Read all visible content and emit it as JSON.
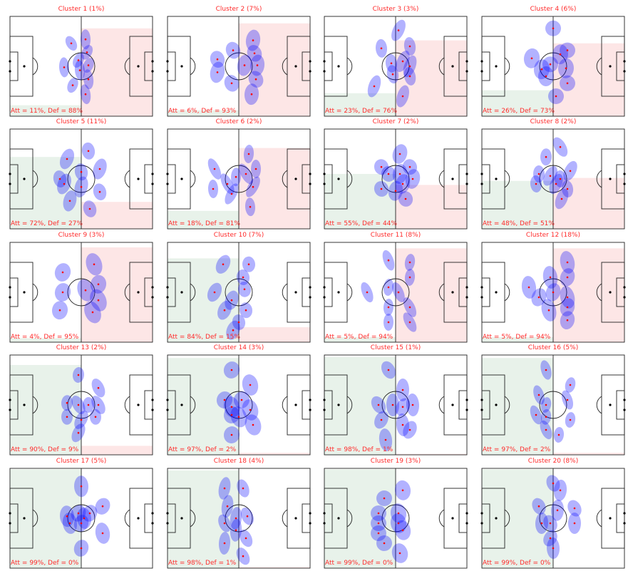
{
  "chart_data": {
    "type": "scatter",
    "title": "",
    "description_units": "player positions in pitch percent (x: own goal to opponent goal, y: top to bottom)",
    "colors": {
      "ellipse": "#0000ff",
      "point": "#ff0000",
      "att_shade": "#e8f2ea",
      "def_shade": "#fde6e6",
      "text": "#ff2a2a"
    },
    "panels": [
      {
        "title": "Cluster 1 (1%)",
        "stats": "Att = 11%, Def = 88%",
        "att": 11,
        "def": 88,
        "points": [
          [
            43,
            27
          ],
          [
            53,
            23
          ],
          [
            54,
            36
          ],
          [
            38,
            51
          ],
          [
            48,
            44
          ],
          [
            49,
            54
          ],
          [
            55,
            49
          ],
          [
            55,
            63
          ],
          [
            44,
            69
          ],
          [
            53,
            78
          ]
        ]
      },
      {
        "title": "Cluster 2 (7%)",
        "stats": "Att = 6%, Def = 93%",
        "att": 6,
        "def": 93,
        "points": [
          [
            35,
            43
          ],
          [
            35,
            56
          ],
          [
            46,
            34
          ],
          [
            54,
            49
          ],
          [
            45,
            67
          ],
          [
            60,
            24
          ],
          [
            61,
            37
          ],
          [
            63,
            49
          ],
          [
            62,
            63
          ],
          [
            59,
            78
          ]
        ]
      },
      {
        "title": "Cluster 3 (3%)",
        "stats": "Att = 23%, Def = 76%",
        "att": 23,
        "def": 76,
        "points": [
          [
            40,
            32
          ],
          [
            52,
            14
          ],
          [
            47,
            47
          ],
          [
            55,
            45
          ],
          [
            60,
            30
          ],
          [
            60,
            50
          ],
          [
            48,
            58
          ],
          [
            35,
            70
          ],
          [
            60,
            60
          ],
          [
            55,
            80
          ]
        ]
      },
      {
        "title": "Cluster 4 (6%)",
        "stats": "Att = 26%, Def = 73%",
        "att": 26,
        "def": 73,
        "points": [
          [
            35,
            42
          ],
          [
            50,
            12
          ],
          [
            42,
            53
          ],
          [
            48,
            48
          ],
          [
            55,
            38
          ],
          [
            60,
            34
          ],
          [
            59,
            52
          ],
          [
            60,
            67
          ],
          [
            45,
            60
          ],
          [
            52,
            80
          ]
        ]
      },
      {
        "title": "Cluster 5 (11%)",
        "stats": "Att = 72%, Def = 27%",
        "att": 72,
        "def": 27,
        "points": [
          [
            40,
            30
          ],
          [
            55,
            22
          ],
          [
            38,
            55
          ],
          [
            50,
            43
          ],
          [
            63,
            40
          ],
          [
            35,
            50
          ],
          [
            50,
            58
          ],
          [
            63,
            63
          ],
          [
            42,
            72
          ],
          [
            56,
            80
          ]
        ]
      },
      {
        "title": "Cluster 6 (2%)",
        "stats": "Att = 18%, Def = 81%",
        "att": 18,
        "def": 81,
        "points": [
          [
            33,
            40
          ],
          [
            57,
            25
          ],
          [
            42,
            55
          ],
          [
            48,
            48
          ],
          [
            55,
            45
          ],
          [
            62,
            40
          ],
          [
            60,
            58
          ],
          [
            32,
            60
          ],
          [
            45,
            65
          ],
          [
            58,
            78
          ]
        ]
      },
      {
        "title": "Cluster 7 (2%)",
        "stats": "Att = 55%, Def = 44%",
        "att": 55,
        "def": 44,
        "points": [
          [
            40,
            38
          ],
          [
            53,
            25
          ],
          [
            45,
            45
          ],
          [
            55,
            55
          ],
          [
            60,
            38
          ],
          [
            62,
            50
          ],
          [
            40,
            60
          ],
          [
            50,
            62
          ],
          [
            57,
            70
          ],
          [
            53,
            45
          ]
        ]
      },
      {
        "title": "Cluster 8 (2%)",
        "stats": "Att = 48%, Def = 51%",
        "att": 48,
        "def": 51,
        "points": [
          [
            45,
            28
          ],
          [
            55,
            18
          ],
          [
            40,
            45
          ],
          [
            48,
            47
          ],
          [
            55,
            50
          ],
          [
            62,
            42
          ],
          [
            38,
            55
          ],
          [
            52,
            55
          ],
          [
            60,
            60
          ],
          [
            56,
            70
          ]
        ]
      },
      {
        "title": "Cluster 9 (3%)",
        "stats": "Att = 4%, Def = 95%",
        "att": 4,
        "def": 95,
        "points": [
          [
            37,
            30
          ],
          [
            59,
            22
          ],
          [
            37,
            50
          ],
          [
            53,
            48
          ],
          [
            62,
            42
          ],
          [
            62,
            58
          ],
          [
            35,
            68
          ],
          [
            58,
            70
          ]
        ]
      },
      {
        "title": "Cluster 10 (7%)",
        "stats": "Att = 84%, Def = 15%",
        "att": 84,
        "def": 15,
        "points": [
          [
            39,
            22
          ],
          [
            57,
            22
          ],
          [
            33,
            50
          ],
          [
            54,
            47
          ],
          [
            40,
            68
          ],
          [
            55,
            68
          ],
          [
            46,
            88
          ],
          [
            53,
            35
          ],
          [
            45,
            58
          ],
          [
            50,
            80
          ]
        ]
      },
      {
        "title": "Cluster 11 (8%)",
        "stats": "Att = 5%, Def = 94%",
        "att": 5,
        "def": 94,
        "points": [
          [
            45,
            18
          ],
          [
            60,
            20
          ],
          [
            30,
            50
          ],
          [
            45,
            45
          ],
          [
            52,
            50
          ],
          [
            60,
            35
          ],
          [
            60,
            65
          ],
          [
            45,
            65
          ],
          [
            60,
            80
          ],
          [
            45,
            80
          ]
        ]
      },
      {
        "title": "Cluster 12 (18%)",
        "stats": "Att = 5%, Def = 94%",
        "att": 5,
        "def": 94,
        "points": [
          [
            33,
            45
          ],
          [
            40,
            55
          ],
          [
            48,
            35
          ],
          [
            50,
            50
          ],
          [
            60,
            20
          ],
          [
            60,
            35
          ],
          [
            60,
            55
          ],
          [
            60,
            65
          ],
          [
            47,
            68
          ],
          [
            60,
            78
          ]
        ]
      },
      {
        "title": "Cluster 13 (2%)",
        "stats": "Att = 90%, Def = 9%",
        "att": 90,
        "def": 9,
        "points": [
          [
            48,
            20
          ],
          [
            62,
            33
          ],
          [
            40,
            48
          ],
          [
            48,
            50
          ],
          [
            55,
            50
          ],
          [
            62,
            50
          ],
          [
            40,
            62
          ],
          [
            50,
            65
          ],
          [
            60,
            62
          ],
          [
            48,
            78
          ]
        ]
      },
      {
        "title": "Cluster 14 (3%)",
        "stats": "Att = 97%, Def = 2%",
        "att": 97,
        "def": 2,
        "points": [
          [
            45,
            15
          ],
          [
            58,
            30
          ],
          [
            40,
            45
          ],
          [
            45,
            52
          ],
          [
            52,
            45
          ],
          [
            58,
            55
          ],
          [
            45,
            60
          ],
          [
            60,
            70
          ],
          [
            45,
            80
          ],
          [
            50,
            62
          ]
        ]
      },
      {
        "title": "Cluster 15 (1%)",
        "stats": "Att = 98%, Def = 1%",
        "att": 98,
        "def": 1,
        "points": [
          [
            45,
            15
          ],
          [
            55,
            35
          ],
          [
            38,
            50
          ],
          [
            48,
            50
          ],
          [
            55,
            52
          ],
          [
            62,
            50
          ],
          [
            40,
            65
          ],
          [
            55,
            70
          ],
          [
            60,
            75
          ],
          [
            43,
            85
          ]
        ]
      },
      {
        "title": "Cluster 16 (5%)",
        "stats": "Att = 97%, Def = 2%",
        "att": 97,
        "def": 2,
        "points": [
          [
            45,
            15
          ],
          [
            62,
            30
          ],
          [
            40,
            40
          ],
          [
            45,
            50
          ],
          [
            60,
            45
          ],
          [
            62,
            65
          ],
          [
            38,
            60
          ],
          [
            45,
            62
          ],
          [
            45,
            75
          ],
          [
            54,
            80
          ]
        ]
      },
      {
        "title": "Cluster 17 (5%)",
        "stats": "Att = 99%, Def = 0%",
        "att": 99,
        "def": 0,
        "points": [
          [
            50,
            18
          ],
          [
            65,
            38
          ],
          [
            40,
            48
          ],
          [
            48,
            45
          ],
          [
            52,
            50
          ],
          [
            56,
            45
          ],
          [
            42,
            55
          ],
          [
            50,
            55
          ],
          [
            65,
            65
          ],
          [
            50,
            80
          ]
        ]
      },
      {
        "title": "Cluster 18 (4%)",
        "stats": "Att = 98%, Def = 1%",
        "att": 98,
        "def": 1,
        "points": [
          [
            40,
            20
          ],
          [
            53,
            20
          ],
          [
            42,
            38
          ],
          [
            40,
            55
          ],
          [
            48,
            50
          ],
          [
            56,
            48
          ],
          [
            48,
            62
          ],
          [
            55,
            70
          ],
          [
            40,
            75
          ],
          [
            53,
            88
          ]
        ]
      },
      {
        "title": "Cluster 19 (3%)",
        "stats": "Att = 99%, Def = 0%",
        "att": 99,
        "def": 0,
        "points": [
          [
            42,
            30
          ],
          [
            55,
            22
          ],
          [
            38,
            45
          ],
          [
            52,
            45
          ],
          [
            38,
            55
          ],
          [
            52,
            55
          ],
          [
            38,
            65
          ],
          [
            55,
            62
          ],
          [
            42,
            75
          ],
          [
            53,
            85
          ]
        ]
      },
      {
        "title": "Cluster 20 (8%)",
        "stats": "Att = 99%, Def = 0%",
        "att": 99,
        "def": 0,
        "points": [
          [
            50,
            15
          ],
          [
            55,
            22
          ],
          [
            40,
            38
          ],
          [
            53,
            42
          ],
          [
            65,
            40
          ],
          [
            42,
            55
          ],
          [
            48,
            55
          ],
          [
            65,
            55
          ],
          [
            48,
            70
          ],
          [
            50,
            80
          ]
        ]
      }
    ]
  }
}
